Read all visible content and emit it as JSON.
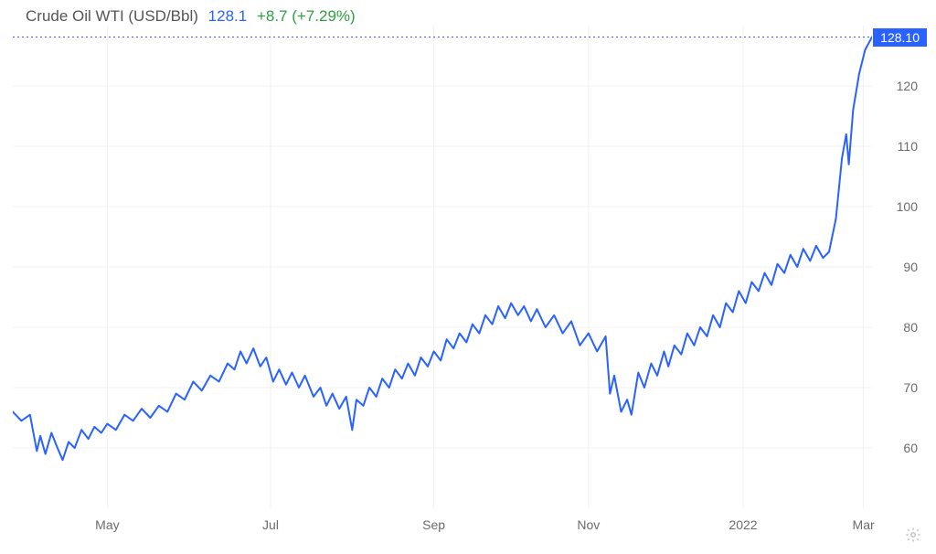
{
  "header": {
    "title": "Crude Oil WTI (USD/Bbl)",
    "price": "128.1",
    "change": "+8.7 (+7.29%)"
  },
  "chart": {
    "type": "line",
    "line_color": "#2962ff",
    "line_width": 2,
    "background_color": "#ffffff",
    "grid_color": "#f0f0f0",
    "current_line_color": "#2962ff",
    "current_value": 128.1,
    "current_value_label": "128.10",
    "badge_bg": "#2962ff",
    "badge_fg": "#ffffff",
    "ylim": [
      50,
      130
    ],
    "yticks": [
      60,
      70,
      80,
      90,
      100,
      110,
      120
    ],
    "xticks": [
      {
        "pos": 0.11,
        "label": "May"
      },
      {
        "pos": 0.3,
        "label": "Jul"
      },
      {
        "pos": 0.49,
        "label": "Sep"
      },
      {
        "pos": 0.67,
        "label": "Nov"
      },
      {
        "pos": 0.85,
        "label": "2022"
      },
      {
        "pos": 0.99,
        "label": "Mar"
      }
    ],
    "series": [
      {
        "x": 0.0,
        "y": 66.0
      },
      {
        "x": 0.01,
        "y": 64.5
      },
      {
        "x": 0.02,
        "y": 65.5
      },
      {
        "x": 0.028,
        "y": 59.5
      },
      {
        "x": 0.032,
        "y": 62.0
      },
      {
        "x": 0.038,
        "y": 59.0
      },
      {
        "x": 0.045,
        "y": 62.5
      },
      {
        "x": 0.052,
        "y": 60.0
      },
      {
        "x": 0.058,
        "y": 58.0
      },
      {
        "x": 0.065,
        "y": 61.0
      },
      {
        "x": 0.072,
        "y": 60.0
      },
      {
        "x": 0.08,
        "y": 63.0
      },
      {
        "x": 0.088,
        "y": 61.5
      },
      {
        "x": 0.095,
        "y": 63.5
      },
      {
        "x": 0.103,
        "y": 62.5
      },
      {
        "x": 0.11,
        "y": 64.0
      },
      {
        "x": 0.12,
        "y": 63.0
      },
      {
        "x": 0.13,
        "y": 65.5
      },
      {
        "x": 0.14,
        "y": 64.5
      },
      {
        "x": 0.15,
        "y": 66.5
      },
      {
        "x": 0.16,
        "y": 65.0
      },
      {
        "x": 0.17,
        "y": 67.0
      },
      {
        "x": 0.18,
        "y": 66.0
      },
      {
        "x": 0.19,
        "y": 69.0
      },
      {
        "x": 0.2,
        "y": 68.0
      },
      {
        "x": 0.21,
        "y": 71.0
      },
      {
        "x": 0.22,
        "y": 69.5
      },
      {
        "x": 0.23,
        "y": 72.0
      },
      {
        "x": 0.24,
        "y": 71.0
      },
      {
        "x": 0.25,
        "y": 74.0
      },
      {
        "x": 0.258,
        "y": 73.0
      },
      {
        "x": 0.265,
        "y": 76.0
      },
      {
        "x": 0.272,
        "y": 74.0
      },
      {
        "x": 0.28,
        "y": 76.5
      },
      {
        "x": 0.288,
        "y": 73.5
      },
      {
        "x": 0.295,
        "y": 75.0
      },
      {
        "x": 0.303,
        "y": 71.0
      },
      {
        "x": 0.31,
        "y": 73.0
      },
      {
        "x": 0.318,
        "y": 70.5
      },
      {
        "x": 0.325,
        "y": 72.5
      },
      {
        "x": 0.333,
        "y": 70.0
      },
      {
        "x": 0.34,
        "y": 72.0
      },
      {
        "x": 0.35,
        "y": 68.5
      },
      {
        "x": 0.358,
        "y": 70.0
      },
      {
        "x": 0.365,
        "y": 67.0
      },
      {
        "x": 0.372,
        "y": 69.0
      },
      {
        "x": 0.38,
        "y": 66.5
      },
      {
        "x": 0.388,
        "y": 68.5
      },
      {
        "x": 0.395,
        "y": 63.0
      },
      {
        "x": 0.4,
        "y": 68.0
      },
      {
        "x": 0.408,
        "y": 67.0
      },
      {
        "x": 0.415,
        "y": 70.0
      },
      {
        "x": 0.423,
        "y": 68.5
      },
      {
        "x": 0.43,
        "y": 71.5
      },
      {
        "x": 0.438,
        "y": 70.0
      },
      {
        "x": 0.445,
        "y": 73.0
      },
      {
        "x": 0.453,
        "y": 71.5
      },
      {
        "x": 0.46,
        "y": 74.0
      },
      {
        "x": 0.468,
        "y": 72.0
      },
      {
        "x": 0.475,
        "y": 75.0
      },
      {
        "x": 0.483,
        "y": 73.5
      },
      {
        "x": 0.49,
        "y": 76.0
      },
      {
        "x": 0.498,
        "y": 74.5
      },
      {
        "x": 0.505,
        "y": 78.0
      },
      {
        "x": 0.513,
        "y": 76.5
      },
      {
        "x": 0.52,
        "y": 79.0
      },
      {
        "x": 0.528,
        "y": 77.5
      },
      {
        "x": 0.535,
        "y": 80.5
      },
      {
        "x": 0.543,
        "y": 79.0
      },
      {
        "x": 0.55,
        "y": 82.0
      },
      {
        "x": 0.558,
        "y": 80.5
      },
      {
        "x": 0.565,
        "y": 83.5
      },
      {
        "x": 0.573,
        "y": 81.5
      },
      {
        "x": 0.58,
        "y": 84.0
      },
      {
        "x": 0.588,
        "y": 82.0
      },
      {
        "x": 0.595,
        "y": 83.5
      },
      {
        "x": 0.603,
        "y": 81.0
      },
      {
        "x": 0.61,
        "y": 83.0
      },
      {
        "x": 0.62,
        "y": 80.0
      },
      {
        "x": 0.63,
        "y": 82.0
      },
      {
        "x": 0.64,
        "y": 79.0
      },
      {
        "x": 0.65,
        "y": 81.0
      },
      {
        "x": 0.66,
        "y": 77.0
      },
      {
        "x": 0.67,
        "y": 79.0
      },
      {
        "x": 0.68,
        "y": 76.0
      },
      {
        "x": 0.69,
        "y": 78.5
      },
      {
        "x": 0.695,
        "y": 69.0
      },
      {
        "x": 0.7,
        "y": 72.0
      },
      {
        "x": 0.708,
        "y": 66.0
      },
      {
        "x": 0.715,
        "y": 68.0
      },
      {
        "x": 0.72,
        "y": 65.5
      },
      {
        "x": 0.728,
        "y": 72.5
      },
      {
        "x": 0.735,
        "y": 70.0
      },
      {
        "x": 0.743,
        "y": 74.0
      },
      {
        "x": 0.75,
        "y": 72.0
      },
      {
        "x": 0.758,
        "y": 76.0
      },
      {
        "x": 0.763,
        "y": 73.5
      },
      {
        "x": 0.77,
        "y": 77.0
      },
      {
        "x": 0.778,
        "y": 75.5
      },
      {
        "x": 0.785,
        "y": 79.0
      },
      {
        "x": 0.793,
        "y": 77.0
      },
      {
        "x": 0.8,
        "y": 80.0
      },
      {
        "x": 0.808,
        "y": 78.5
      },
      {
        "x": 0.815,
        "y": 82.0
      },
      {
        "x": 0.823,
        "y": 80.0
      },
      {
        "x": 0.83,
        "y": 84.0
      },
      {
        "x": 0.838,
        "y": 82.5
      },
      {
        "x": 0.845,
        "y": 86.0
      },
      {
        "x": 0.853,
        "y": 84.0
      },
      {
        "x": 0.86,
        "y": 87.5
      },
      {
        "x": 0.868,
        "y": 86.0
      },
      {
        "x": 0.875,
        "y": 89.0
      },
      {
        "x": 0.883,
        "y": 87.0
      },
      {
        "x": 0.89,
        "y": 90.5
      },
      {
        "x": 0.898,
        "y": 89.0
      },
      {
        "x": 0.905,
        "y": 92.0
      },
      {
        "x": 0.913,
        "y": 90.0
      },
      {
        "x": 0.92,
        "y": 93.0
      },
      {
        "x": 0.928,
        "y": 91.0
      },
      {
        "x": 0.935,
        "y": 93.5
      },
      {
        "x": 0.943,
        "y": 91.5
      },
      {
        "x": 0.95,
        "y": 92.5
      },
      {
        "x": 0.958,
        "y": 98.0
      },
      {
        "x": 0.965,
        "y": 108.0
      },
      {
        "x": 0.97,
        "y": 112.0
      },
      {
        "x": 0.973,
        "y": 107.0
      },
      {
        "x": 0.978,
        "y": 116.0
      },
      {
        "x": 0.985,
        "y": 122.0
      },
      {
        "x": 0.992,
        "y": 126.0
      },
      {
        "x": 1.0,
        "y": 128.1
      }
    ]
  }
}
